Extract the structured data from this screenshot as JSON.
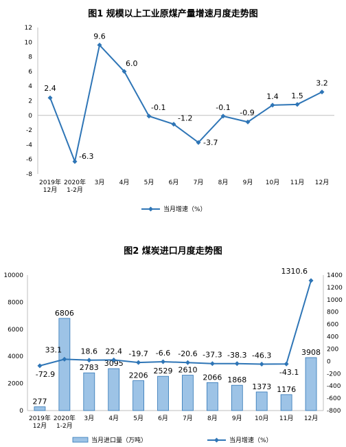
{
  "charts": [
    {
      "type": "line",
      "title": "图1  规模以上工业原煤产量增速月度走势图",
      "categories": [
        "2019年\n12月",
        "2020年\n1-2月",
        "3月",
        "4月",
        "5月",
        "6月",
        "7月",
        "8月",
        "9月",
        "10月",
        "11月",
        "12月"
      ],
      "series": [
        {
          "name": "当月增速（%）",
          "color": "#2e75b6",
          "values": [
            2.4,
            -6.3,
            9.6,
            6.0,
            -0.1,
            -1.2,
            -3.7,
            -0.1,
            -0.9,
            1.4,
            1.5,
            3.2
          ]
        }
      ],
      "ylim": [
        -8,
        12
      ],
      "yticks": [
        -8,
        -6,
        -4,
        -2,
        0,
        2,
        4,
        6,
        8,
        10,
        12
      ],
      "legend_position": "bottom-center",
      "grid": false
    },
    {
      "type": "bar+line",
      "title": "图2  煤炭进口月度走势图",
      "categories": [
        "2019年\n12月",
        "2020年\n1-2月",
        "3月",
        "4月",
        "5月",
        "6月",
        "7月",
        "8月",
        "9月",
        "10月",
        "11月",
        "12月"
      ],
      "bar_series": {
        "name": "当月进口量（万吨）",
        "color": "#9dc3e6",
        "edge": "#2e75b6",
        "values": [
          277,
          6806,
          2783,
          3095,
          2206,
          2529,
          2610,
          2066,
          1868,
          1373,
          1176,
          3908
        ],
        "labels": [
          "277",
          "6806",
          "2783",
          "3095",
          "2206",
          "2529",
          "2610",
          "2066",
          "1868",
          "1373",
          "1176",
          "3908"
        ]
      },
      "line_series": {
        "name": "当月增速（%）",
        "color": "#2e75b6",
        "values": [
          -72.9,
          33.1,
          18.6,
          22.4,
          -19.7,
          -6.6,
          -20.6,
          -37.3,
          -38.3,
          -46.3,
          -43.1,
          1310.6
        ],
        "labels": [
          "-72.9",
          "33.1",
          "18.6",
          "22.4",
          "-19.7",
          "-6.6",
          "-20.6",
          "-37.3",
          "-38.3",
          "-46.3",
          "-43.1",
          "1310.6"
        ]
      },
      "ylim_left": [
        0,
        10000
      ],
      "yticks_left": [
        0,
        2000,
        4000,
        6000,
        8000,
        10000
      ],
      "ylim_right": [
        -800,
        1400
      ],
      "yticks_right": [
        -800,
        -600,
        -400,
        -200,
        0,
        200,
        400,
        600,
        800,
        1000,
        1200,
        1400
      ],
      "legend_position": "bottom-center",
      "grid": false
    }
  ]
}
